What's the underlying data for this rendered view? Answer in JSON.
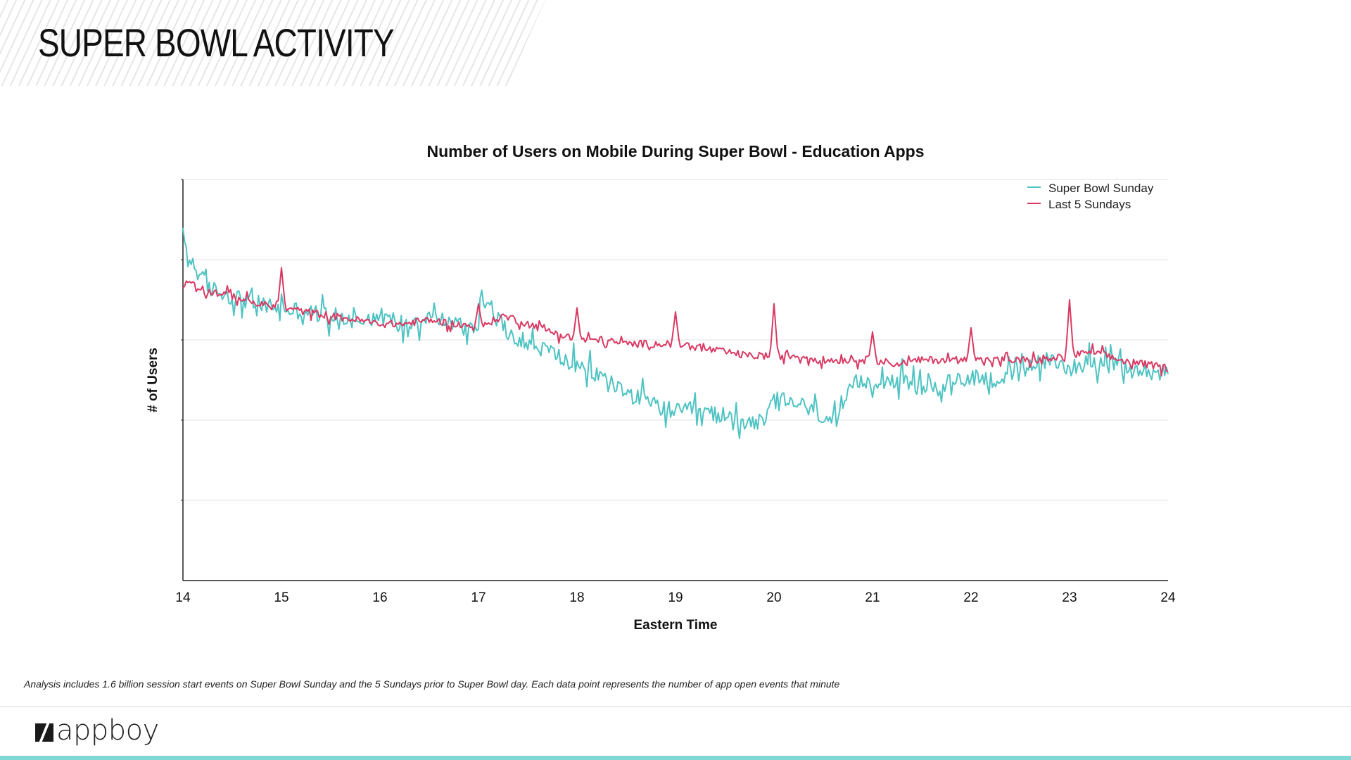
{
  "slide": {
    "title": "SUPER BOWL ACTIVITY",
    "footnote": "Analysis includes 1.6 billion session start events on Super Bowl Sunday and the 5 Sundays prior to Super Bowl day.  Each data point represents the number of app open events that minute",
    "logo_text": "appboy"
  },
  "colors": {
    "super_bowl": "#4fc3c3",
    "last5": "#d93a63",
    "accent_bar": "#7fd8d4"
  },
  "chart_data": {
    "type": "line",
    "title": "Number of Users on Mobile During Super Bowl - Education Apps",
    "xlabel": "Eastern Time",
    "ylabel": "# of Users",
    "xlim": [
      14,
      24
    ],
    "ylim": [
      0,
      5
    ],
    "xticks": [
      "14",
      "15",
      "16",
      "17",
      "18",
      "19",
      "20",
      "21",
      "22",
      "23",
      "24"
    ],
    "grid": true,
    "legend_position": "top-right",
    "series": [
      {
        "name": "Super Bowl Sunday",
        "x": [
          14.0,
          14.05,
          14.25,
          14.5,
          14.75,
          15.0,
          15.25,
          15.5,
          15.75,
          16.0,
          16.25,
          16.5,
          16.75,
          17.0,
          17.02,
          17.25,
          17.5,
          17.75,
          18.0,
          18.25,
          18.5,
          18.75,
          19.0,
          19.25,
          19.5,
          19.75,
          19.9,
          20.0,
          20.25,
          20.5,
          20.65,
          20.8,
          21.0,
          21.25,
          21.5,
          21.75,
          22.0,
          22.25,
          22.5,
          22.75,
          23.0,
          23.25,
          23.5,
          23.75,
          24.0
        ],
        "y": [
          4.3,
          4.05,
          3.65,
          3.55,
          3.45,
          3.4,
          3.35,
          3.3,
          3.25,
          3.3,
          3.2,
          3.3,
          3.2,
          3.15,
          3.6,
          3.15,
          2.95,
          2.85,
          2.65,
          2.55,
          2.35,
          2.2,
          2.1,
          2.1,
          2.05,
          2.0,
          1.95,
          2.25,
          2.2,
          2.05,
          1.95,
          2.45,
          2.5,
          2.5,
          2.4,
          2.45,
          2.55,
          2.5,
          2.6,
          2.75,
          2.65,
          2.75,
          2.65,
          2.6,
          2.6
        ],
        "noise": 0.11
      },
      {
        "name": "Last 5 Sundays",
        "x": [
          14.0,
          14.05,
          14.25,
          14.5,
          14.75,
          15.0,
          15.25,
          15.5,
          15.75,
          16.0,
          16.25,
          16.5,
          16.75,
          17.0,
          17.25,
          17.5,
          17.75,
          18.0,
          18.25,
          18.5,
          18.75,
          19.0,
          19.25,
          19.5,
          19.75,
          20.0,
          20.25,
          20.5,
          20.75,
          21.0,
          21.25,
          21.5,
          21.75,
          22.0,
          22.25,
          22.5,
          22.75,
          23.0,
          23.25,
          23.5,
          23.75,
          24.0
        ],
        "y": [
          3.65,
          3.75,
          3.6,
          3.55,
          3.45,
          3.4,
          3.35,
          3.3,
          3.25,
          3.2,
          3.2,
          3.25,
          3.2,
          3.15,
          3.3,
          3.2,
          3.1,
          3.0,
          3.0,
          2.95,
          2.95,
          2.95,
          2.9,
          2.85,
          2.8,
          2.8,
          2.8,
          2.75,
          2.75,
          2.75,
          2.7,
          2.75,
          2.75,
          2.75,
          2.75,
          2.75,
          2.75,
          2.8,
          2.85,
          2.75,
          2.7,
          2.65
        ],
        "noise": 0.045,
        "spikes": [
          [
            15.0,
            3.9
          ],
          [
            17.0,
            3.45
          ],
          [
            18.0,
            3.4
          ],
          [
            19.0,
            3.35
          ],
          [
            20.0,
            3.45
          ],
          [
            21.0,
            3.1
          ],
          [
            22.0,
            3.15
          ],
          [
            23.0,
            3.5
          ]
        ]
      }
    ]
  }
}
